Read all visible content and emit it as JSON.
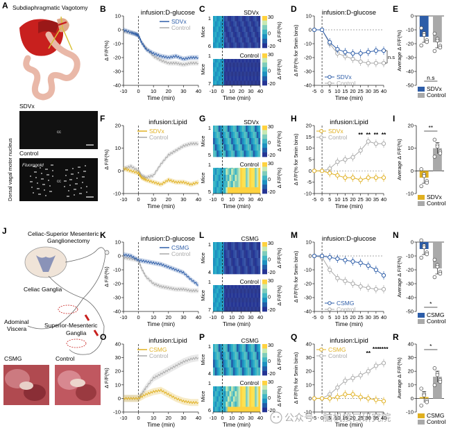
{
  "panels": {
    "A": {
      "letter": "A",
      "title": "Subdiaphragmatic Vagotomy",
      "ylabel": "Dorsal vagal motor nucleus",
      "top_label": "SDVx",
      "bottom_label": "Control",
      "cc": "cc",
      "tracer": "Fluorogold"
    },
    "J": {
      "letter": "J",
      "title_line1": "Celiac-Superior Mesenteric",
      "title_line2": "Ganglionectomy",
      "celiac": "Celiac Ganglia",
      "viscera_line1": "Adominal",
      "viscera_line2": "Viscera",
      "sm_line1": "Superior-Mesenteric",
      "sm_line2": "Ganglia",
      "photo_left": "CSMG",
      "photo_right": "Control"
    },
    "B": {
      "letter": "B"
    },
    "C": {
      "letter": "C"
    },
    "D": {
      "letter": "D"
    },
    "E": {
      "letter": "E"
    },
    "F": {
      "letter": "F"
    },
    "G": {
      "letter": "G"
    },
    "H": {
      "letter": "H"
    },
    "I": {
      "letter": "I"
    },
    "K": {
      "letter": "K"
    },
    "L": {
      "letter": "L"
    },
    "M": {
      "letter": "M"
    },
    "N": {
      "letter": "N"
    },
    "O": {
      "letter": "O"
    },
    "P": {
      "letter": "P"
    },
    "Q": {
      "letter": "Q"
    },
    "R": {
      "letter": "R"
    }
  },
  "watermark": "公众号 · 脑机接口研究院",
  "chart_data": [
    {
      "id": "B",
      "type": "line",
      "title": "infusion:D-glucose",
      "xlabel": "Time (min)",
      "ylabel": "Δ F/F(%)",
      "xlim": [
        -10,
        40
      ],
      "ylim": [
        -40,
        10
      ],
      "xticks": [
        -10,
        0,
        10,
        20,
        30,
        40
      ],
      "yticks": [
        10,
        0,
        -10,
        -20,
        -30,
        -40
      ],
      "series": [
        {
          "name": "SDVx",
          "color": "#2d5da8",
          "x": [
            -10,
            -5,
            -2,
            0,
            2,
            5,
            10,
            15,
            20,
            25,
            30,
            35,
            40
          ],
          "y": [
            0,
            -2,
            -3,
            -4,
            -9,
            -14,
            -17,
            -19,
            -20,
            -19,
            -21,
            -20,
            -20
          ]
        },
        {
          "name": "Control",
          "color": "#a9a9a9",
          "x": [
            -10,
            -5,
            -2,
            0,
            2,
            5,
            10,
            15,
            20,
            25,
            30,
            35,
            40
          ],
          "y": [
            -1,
            -2,
            -3,
            -4,
            -9,
            -13,
            -19,
            -22,
            -24,
            -24,
            -25,
            -24,
            -24
          ]
        }
      ]
    },
    {
      "id": "C",
      "type": "heatmap",
      "title": "SDVx",
      "title2": "Control",
      "ylabel": "Mice",
      "xlabel": "Time (min)",
      "xticks": [
        -10,
        0,
        10,
        20,
        30,
        40
      ],
      "rows_top": [
        "1",
        "6"
      ],
      "rows_bottom": [
        "1",
        "7"
      ],
      "colorbar_label": "Δ F/F(%)",
      "colorbar_ticks": [
        30,
        0,
        -20
      ],
      "style": "decrease"
    },
    {
      "id": "D",
      "type": "line",
      "title": "infusion:D-glucose",
      "xlabel": "Time (min)",
      "ylabel": "Δ F/F(% for 5min bins)",
      "xlim": [
        -5,
        40
      ],
      "ylim": [
        -40,
        10
      ],
      "xticks": [
        -5,
        0,
        5,
        10,
        15,
        20,
        25,
        30,
        35,
        40
      ],
      "yticks": [
        10,
        0,
        -10,
        -20,
        -30,
        -40
      ],
      "annotation": "n.s",
      "series": [
        {
          "name": "SDVx",
          "color": "#2d5da8",
          "x": [
            -5,
            0,
            5,
            10,
            15,
            20,
            25,
            30,
            35,
            40
          ],
          "y": [
            0,
            0,
            -9,
            -14,
            -16,
            -17,
            -17,
            -16,
            -15,
            -15
          ]
        },
        {
          "name": "Control",
          "color": "#a9a9a9",
          "x": [
            -5,
            0,
            5,
            10,
            15,
            20,
            25,
            30,
            35,
            40
          ],
          "y": [
            0,
            0,
            -10,
            -17,
            -19,
            -21,
            -23,
            -24,
            -24,
            -24
          ]
        }
      ]
    },
    {
      "id": "E",
      "type": "bar",
      "ylabel": "Average Δ F/F(%)",
      "ylim": [
        -50,
        0
      ],
      "yticks": [
        0,
        -10,
        -20,
        -30,
        -40,
        -50
      ],
      "annotation": "n.s",
      "categories": [
        "SDVx",
        "Control"
      ],
      "values": [
        -15,
        -19
      ],
      "colors": [
        "#2d5da8",
        "#a9a9a9"
      ]
    },
    {
      "id": "F",
      "type": "line",
      "title": "infusion:Lipid",
      "xlabel": "Time (min)",
      "ylabel": "Δ F/F(%)",
      "xlim": [
        -10,
        40
      ],
      "ylim": [
        -10,
        20
      ],
      "xticks": [
        -10,
        0,
        10,
        20,
        30,
        40
      ],
      "yticks": [
        20,
        10,
        0,
        -10
      ],
      "series": [
        {
          "name": "SDVx",
          "color": "#e0b020",
          "x": [
            -10,
            -5,
            0,
            2,
            5,
            10,
            15,
            20,
            25,
            30,
            35,
            40
          ],
          "y": [
            1,
            0,
            -1,
            -3,
            -4,
            -5,
            -6,
            -4,
            -5,
            -5,
            -6,
            -5
          ]
        },
        {
          "name": "Control",
          "color": "#a9a9a9",
          "x": [
            -10,
            -5,
            0,
            2,
            5,
            10,
            15,
            20,
            25,
            30,
            35,
            40
          ],
          "y": [
            1,
            2,
            0,
            -2,
            -3,
            -2,
            3,
            7,
            9,
            11,
            12,
            12
          ]
        }
      ]
    },
    {
      "id": "G",
      "type": "heatmap",
      "title": "SDVx",
      "title2": "Control",
      "ylabel": "Mice",
      "xlabel": "Time (min)",
      "xticks": [
        -10,
        0,
        10,
        20,
        30,
        40
      ],
      "rows_top": [
        "1",
        "5"
      ],
      "rows_bottom": [
        "1",
        "5"
      ],
      "colorbar_label": "Δ F/F(%)",
      "colorbar_ticks": [
        30,
        0,
        -20
      ],
      "style": "increase"
    },
    {
      "id": "H",
      "type": "line",
      "title": "infusion:Lipid",
      "xlabel": "Time (min)",
      "ylabel": "Δ F/F(% for 5min bins)",
      "xlim": [
        -5,
        40
      ],
      "ylim": [
        -10,
        20
      ],
      "xticks": [
        -5,
        0,
        5,
        10,
        15,
        20,
        25,
        30,
        35,
        40
      ],
      "yticks": [
        20,
        15,
        10,
        5,
        0,
        -5,
        -10
      ],
      "stars": [
        {
          "x": 25,
          "t": "**"
        },
        {
          "x": 30,
          "t": "**"
        },
        {
          "x": 35,
          "t": "**"
        },
        {
          "x": 40,
          "t": "**"
        }
      ],
      "series": [
        {
          "name": "SDVx",
          "color": "#e0b020",
          "x": [
            -5,
            0,
            5,
            10,
            15,
            20,
            25,
            30,
            35,
            40
          ],
          "y": [
            0,
            0,
            -1,
            -2,
            -3,
            -3,
            -4,
            -3,
            -3,
            -3
          ]
        },
        {
          "name": "Control",
          "color": "#a9a9a9",
          "x": [
            -5,
            0,
            5,
            10,
            15,
            20,
            25,
            30,
            35,
            40
          ],
          "y": [
            0,
            0,
            1,
            4,
            5,
            6,
            9,
            13,
            12,
            12
          ]
        }
      ]
    },
    {
      "id": "I",
      "type": "bar",
      "ylabel": "Average Δ F/F(%)",
      "ylim": [
        -10,
        20
      ],
      "yticks": [
        20,
        10,
        0,
        -10
      ],
      "annotation": "**",
      "categories": [
        "SDVx",
        "Control"
      ],
      "values": [
        -3,
        10
      ],
      "colors": [
        "#e0b020",
        "#a9a9a9"
      ]
    },
    {
      "id": "K",
      "type": "line",
      "title": "infusion:D-glucose",
      "xlabel": "Time (min)",
      "ylabel": "Δ F/F(%)",
      "xlim": [
        -10,
        40
      ],
      "ylim": [
        -40,
        10
      ],
      "xticks": [
        -10,
        0,
        10,
        20,
        30,
        40
      ],
      "yticks": [
        10,
        0,
        -10,
        -20,
        -30,
        -40
      ],
      "series": [
        {
          "name": "CSMG",
          "color": "#2d5da8",
          "x": [
            -10,
            -5,
            0,
            5,
            10,
            15,
            20,
            25,
            30,
            35,
            40
          ],
          "y": [
            1,
            0,
            -3,
            -4,
            -5,
            -6,
            -8,
            -10,
            -12,
            -17,
            -21
          ]
        },
        {
          "name": "Control",
          "color": "#a9a9a9",
          "x": [
            -10,
            -5,
            0,
            2,
            5,
            10,
            15,
            20,
            25,
            30,
            35,
            40
          ],
          "y": [
            -1,
            -2,
            -3,
            -9,
            -15,
            -20,
            -22,
            -23,
            -24,
            -24,
            -25,
            -25
          ]
        }
      ]
    },
    {
      "id": "L",
      "type": "heatmap",
      "title": "CSMG",
      "title2": "Control",
      "ylabel": "Mice",
      "xlabel": "Time (min)",
      "xticks": [
        -10,
        0,
        10,
        20,
        30,
        40
      ],
      "rows_top": [
        "1",
        "4"
      ],
      "rows_bottom": [
        "1",
        "7"
      ],
      "colorbar_label": "Δ F/F(%)",
      "colorbar_ticks": [
        30,
        0,
        -20
      ],
      "style": "decrease"
    },
    {
      "id": "M",
      "type": "line",
      "title": "infusion:D-glucose",
      "xlabel": "Time (min)",
      "ylabel": "Δ F/F(% for 5min bins)",
      "xlim": [
        -5,
        40
      ],
      "ylim": [
        -40,
        10
      ],
      "xticks": [
        -5,
        0,
        5,
        10,
        15,
        20,
        25,
        30,
        35,
        40
      ],
      "yticks": [
        10,
        0,
        -10,
        -20,
        -30,
        -40
      ],
      "series": [
        {
          "name": "CSMG",
          "color": "#2d5da8",
          "x": [
            -5,
            0,
            5,
            10,
            15,
            20,
            25,
            30,
            35,
            40
          ],
          "y": [
            0,
            0,
            -1,
            -2,
            -3,
            -4,
            -5,
            -7,
            -10,
            -14
          ]
        },
        {
          "name": "Control",
          "color": "#a9a9a9",
          "x": [
            -5,
            0,
            5,
            10,
            15,
            20,
            25,
            30,
            35,
            40
          ],
          "y": [
            0,
            -1,
            -10,
            -16,
            -18,
            -20,
            -22,
            -23,
            -24,
            -24
          ]
        }
      ]
    },
    {
      "id": "N",
      "type": "bar",
      "ylabel": "Average Δ F/F(%)",
      "ylim": [
        -50,
        0
      ],
      "yticks": [
        0,
        -10,
        -20,
        -30,
        -40,
        -50
      ],
      "annotation": "*",
      "categories": [
        "CSMG",
        "Control"
      ],
      "values": [
        -5,
        -19
      ],
      "colors": [
        "#2d5da8",
        "#a9a9a9"
      ]
    },
    {
      "id": "O",
      "type": "line",
      "title": "infusion:Lipid",
      "xlabel": "Time (min)",
      "ylabel": "Δ F/F(%)",
      "xlim": [
        -10,
        40
      ],
      "ylim": [
        -10,
        40
      ],
      "xticks": [
        -10,
        0,
        10,
        20,
        30,
        40
      ],
      "yticks": [
        40,
        30,
        20,
        10,
        0,
        -10
      ],
      "series": [
        {
          "name": "CSMG",
          "color": "#e0b020",
          "x": [
            -10,
            -5,
            0,
            5,
            10,
            15,
            20,
            25,
            30,
            35,
            40
          ],
          "y": [
            0,
            0,
            0,
            3,
            5,
            6,
            3,
            0,
            -2,
            -3,
            -3
          ]
        },
        {
          "name": "Control",
          "color": "#a9a9a9",
          "x": [
            -10,
            -5,
            0,
            2,
            5,
            10,
            15,
            20,
            25,
            30,
            35,
            40
          ],
          "y": [
            0,
            0,
            0,
            3,
            8,
            15,
            18,
            21,
            24,
            27,
            29,
            30
          ]
        }
      ]
    },
    {
      "id": "P",
      "type": "heatmap",
      "title": "CSMG",
      "title2": "Control",
      "ylabel": "Mice",
      "xlabel": "Time (min)",
      "xticks": [
        -10,
        0,
        10,
        20,
        30,
        40
      ],
      "rows_top": [
        "1",
        "4"
      ],
      "rows_bottom": [
        "1",
        "6"
      ],
      "colorbar_label": "Δ F/F(%)",
      "colorbar_ticks": [
        30,
        0,
        -20
      ],
      "style": "increase"
    },
    {
      "id": "Q",
      "type": "line",
      "title": "infusion:Lipid",
      "xlabel": "Time (min)",
      "ylabel": "Δ F/F(% for 5min bins)",
      "xlim": [
        -5,
        40
      ],
      "ylim": [
        -10,
        40
      ],
      "xticks": [
        -5,
        0,
        5,
        10,
        15,
        20,
        25,
        30,
        35,
        40
      ],
      "yticks": [
        40,
        30,
        20,
        10,
        0,
        -10
      ],
      "stars": [
        {
          "x": 30,
          "t": "**"
        },
        {
          "x": 35,
          "t": "***"
        },
        {
          "x": 40,
          "t": "****"
        }
      ],
      "series": [
        {
          "name": "CSMG",
          "color": "#e0b020",
          "x": [
            -5,
            0,
            5,
            10,
            15,
            20,
            25,
            30,
            35,
            40
          ],
          "y": [
            0,
            0,
            0,
            1,
            3,
            3,
            1,
            0,
            -1,
            -2
          ]
        },
        {
          "name": "Control",
          "color": "#a9a9a9",
          "x": [
            -5,
            0,
            5,
            10,
            15,
            20,
            25,
            30,
            35,
            40
          ],
          "y": [
            0,
            0,
            3,
            8,
            13,
            15,
            17,
            20,
            24,
            26
          ]
        }
      ]
    },
    {
      "id": "R",
      "type": "bar",
      "ylabel": "Average Δ F/F(%)",
      "ylim": [
        -10,
        40
      ],
      "yticks": [
        40,
        30,
        20,
        10,
        0,
        -10
      ],
      "annotation": "*",
      "categories": [
        "CSMG",
        "Control"
      ],
      "values": [
        1,
        16
      ],
      "colors": [
        "#e0b020",
        "#a9a9a9"
      ]
    }
  ]
}
